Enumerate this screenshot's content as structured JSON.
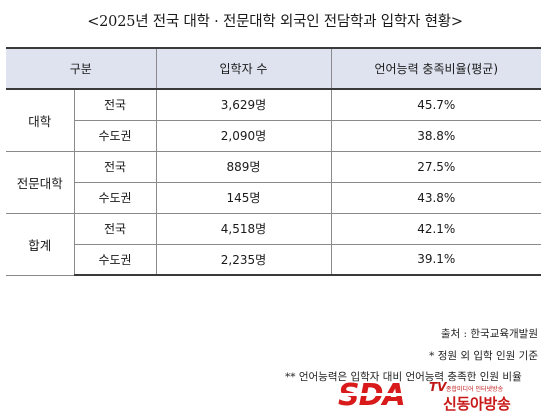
{
  "title": "<2025년 전국 대학 · 전문대학 외국인 전담학과 입학자 현황>",
  "table": {
    "headers": {
      "group": "구분",
      "admissions": "입학자 수",
      "language_rate": "언어능력 충족비율(평균)"
    },
    "groups": [
      {
        "label": "대학",
        "rows": [
          {
            "region": "전국",
            "admissions": "3,629명",
            "language_rate": "45.7%"
          },
          {
            "region": "수도권",
            "admissions": "2,090명",
            "language_rate": "38.8%"
          }
        ]
      },
      {
        "label": "전문대학",
        "rows": [
          {
            "region": "전국",
            "admissions": "889명",
            "language_rate": "27.5%"
          },
          {
            "region": "수도권",
            "admissions": "145명",
            "language_rate": "43.8%"
          }
        ]
      },
      {
        "label": "합계",
        "rows": [
          {
            "region": "전국",
            "admissions": "4,518명",
            "language_rate": "42.1%"
          },
          {
            "region": "수도권",
            "admissions": "2,235명",
            "language_rate": "39.1%"
          }
        ]
      }
    ]
  },
  "notes": {
    "source": "출처 : 한국교육개발원",
    "note1": "* 정원 외 입학 인원 기준",
    "note2": "** 언어능력은 입학자 대비 언어능력 충족한 인원 비율"
  },
  "logo": {
    "mark": "SDA",
    "tv": "TV",
    "tagline": "종합미디어 인터넷방송",
    "name": "신동아방송",
    "color": "#d81a1a"
  }
}
